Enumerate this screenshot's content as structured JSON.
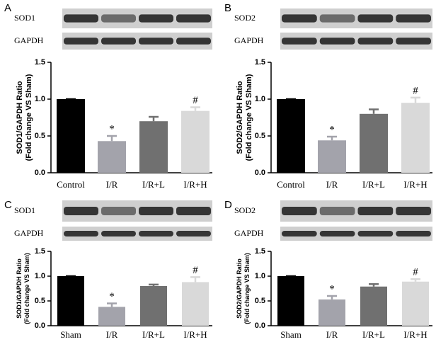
{
  "chart_data": [
    {
      "type": "bar",
      "panel": "A",
      "blot_labels": [
        "SOD1",
        "GAPDH"
      ],
      "ylabel": [
        "SOD1/GAPDH Ratio",
        "(Fold change VS Sham)"
      ],
      "categories": [
        "Control",
        "I/R",
        "I/R+L",
        "I/R+H"
      ],
      "values": [
        1.0,
        0.43,
        0.7,
        0.84
      ],
      "errors": [
        0,
        0.07,
        0.06,
        0.05
      ],
      "bar_labels": [
        null,
        "*",
        null,
        "#"
      ],
      "colors": [
        "#000000",
        "#a3a3ab",
        "#707070",
        "#d9d9d9"
      ],
      "ylim": [
        0,
        1.5
      ],
      "yticks": [
        {
          "value": 0,
          "label": "0.0"
        },
        0.5,
        {
          "value": 1,
          "label": "1.0"
        },
        1.5
      ]
    },
    {
      "type": "bar",
      "panel": "B",
      "blot_labels": [
        "SOD2",
        "GAPDH"
      ],
      "ylabel": [
        "SOD2/GAPDH Ratio",
        "(Fold change VS Sham)"
      ],
      "categories": [
        "Control",
        "I/R",
        "I/R+L",
        "I/R+H"
      ],
      "values": [
        1.0,
        0.44,
        0.8,
        0.95
      ],
      "errors": [
        0,
        0.05,
        0.06,
        0.07
      ],
      "bar_labels": [
        null,
        "*",
        null,
        "#"
      ],
      "colors": [
        "#000000",
        "#a3a3ab",
        "#707070",
        "#d9d9d9"
      ],
      "ylim": [
        0,
        1.5
      ],
      "yticks": [
        {
          "value": 0,
          "label": "0.0"
        },
        0.5,
        {
          "value": 1,
          "label": "1.0"
        },
        1.5
      ]
    },
    {
      "type": "bar",
      "panel": "C",
      "blot_labels": [
        "SOD1",
        "GAPDH"
      ],
      "ylabel": [
        "SOD1/GAPDH Ratio",
        "(Fold change VS Sham)"
      ],
      "categories": [
        "Sham",
        "I/R",
        "I/R+L",
        "I/R+H"
      ],
      "values": [
        1.0,
        0.38,
        0.8,
        0.88
      ],
      "errors": [
        0,
        0.07,
        0.03,
        0.1
      ],
      "bar_labels": [
        null,
        "*",
        null,
        "#"
      ],
      "colors": [
        "#000000",
        "#a3a3ab",
        "#707070",
        "#d9d9d9"
      ],
      "ylim": [
        0,
        1.5
      ],
      "yticks": [
        {
          "value": 0,
          "label": "0.0"
        },
        0.5,
        {
          "value": 1,
          "label": "1.0"
        },
        1.5
      ]
    },
    {
      "type": "bar",
      "panel": "D",
      "blot_labels": [
        "SOD2",
        "GAPDH"
      ],
      "ylabel": [
        "SOD2/GAPDH Ratio",
        "(Fold change VS Sham)"
      ],
      "categories": [
        "Sham",
        "I/R",
        "I/R+L",
        "I/R+H"
      ],
      "values": [
        1.0,
        0.53,
        0.79,
        0.89
      ],
      "errors": [
        0,
        0.07,
        0.05,
        0.05
      ],
      "bar_labels": [
        null,
        "*",
        null,
        "#"
      ],
      "colors": [
        "#000000",
        "#a3a3ab",
        "#707070",
        "#d9d9d9"
      ],
      "ylim": [
        0,
        1.5
      ],
      "yticks": [
        {
          "value": 0,
          "label": "0.0"
        },
        0.5,
        {
          "value": 1,
          "label": "1.0"
        },
        1.5
      ]
    }
  ]
}
